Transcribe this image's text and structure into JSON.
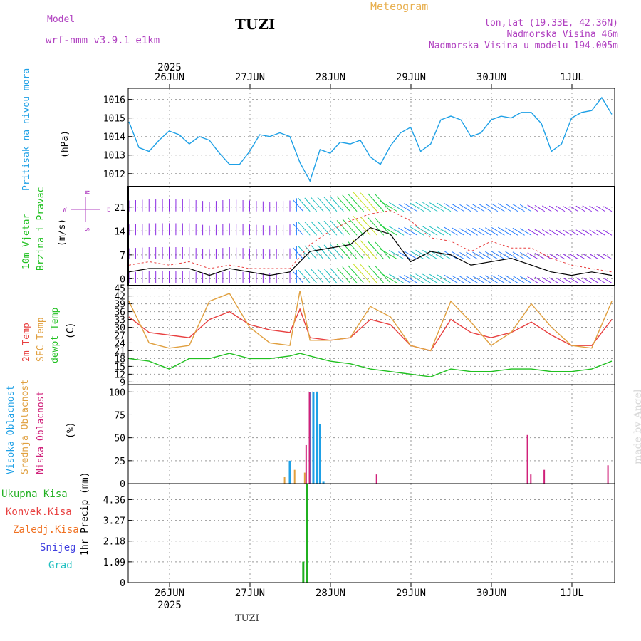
{
  "header": {
    "model_label": "Model",
    "model_name": "wrf-nmm_v3.9.1 e1km",
    "station": "TUZI",
    "meteogram_title": "Meteogram",
    "coords": "lon,lat (19.33E, 42.36N)",
    "elevation": "Nadmorska Visina 46m",
    "model_elevation": "Nadmorska Visina u modelu 194.005m"
  },
  "footer": {
    "station": "TUZI",
    "watermark": "made by Angel"
  },
  "time_axis": {
    "year": "2025",
    "days": [
      "26JUN",
      "27JUN",
      "28JUN",
      "29JUN",
      "30JUN",
      "1JUL"
    ]
  },
  "panel_labels": {
    "pressure": {
      "name": "Pritisak na nivou mora",
      "unit": "(hPa)"
    },
    "wind": {
      "name1": "10m Vjetar",
      "name2": "Brzina i Pravac",
      "unit": "(m/s)",
      "compass_n": "N",
      "compass_e": "E",
      "compass_w": "W",
      "compass_s": "S"
    },
    "temp": {
      "t2m": "2m Temp",
      "sfc": "SFC Temp",
      "dew": "dewpt Temp",
      "unit": "(C)"
    },
    "cloud": {
      "high": "Visoka Oblacnost",
      "mid": "Srednja Oblacnost",
      "low": "Niska Oblacnost",
      "unit": "(%)"
    },
    "precip": {
      "unit": "1hr Precip (mm)",
      "legend": [
        "Ukupna Kisa",
        "Konvek.Kisa",
        "Zaledj.Kisa",
        "Snijeg",
        "Grad"
      ]
    }
  },
  "colors": {
    "pressure": "#1ea0e6",
    "t2m": "#e84040",
    "sfc": "#e0a040",
    "dew": "#20c020",
    "high": "#1ea0e6",
    "mid": "#e0a040",
    "low": "#d0207a",
    "total_rain": "#20b020",
    "conv_rain": "#e84040",
    "frz_rain": "#f07020",
    "snow": "#4040e0",
    "hail": "#20c0c0",
    "wind_line": "#000000",
    "gust": "#e84040"
  },
  "chart_data": [
    {
      "type": "line",
      "title": "Pritisak na nivou mora",
      "ylabel": "(hPa)",
      "ylim": [
        1011.3,
        1016.6
      ],
      "yticks": [
        1012,
        1013,
        1014,
        1015,
        1016
      ],
      "x_range": [
        0,
        144
      ],
      "series": [
        {
          "name": "Pritisak na nivou mora",
          "x": [
            0,
            3,
            6,
            9,
            12,
            15,
            18,
            21,
            24,
            27,
            30,
            33,
            36,
            39,
            42,
            45,
            48,
            51,
            54,
            57,
            60,
            63,
            66,
            69,
            72,
            75,
            78,
            81,
            84,
            87,
            90,
            93,
            96,
            99,
            102,
            105,
            108,
            111,
            114,
            117,
            120,
            123,
            126,
            129,
            132,
            135,
            138,
            141,
            144
          ],
          "values": [
            1014.8,
            1013.4,
            1013.2,
            1013.8,
            1014.3,
            1014.1,
            1013.6,
            1014.0,
            1013.8,
            1013.1,
            1012.5,
            1012.5,
            1013.2,
            1014.1,
            1014.0,
            1014.2,
            1014.0,
            1012.6,
            1011.6,
            1013.3,
            1013.1,
            1013.7,
            1013.6,
            1013.8,
            1012.9,
            1012.5,
            1013.5,
            1014.2,
            1014.5,
            1013.2,
            1013.6,
            1014.9,
            1015.1,
            1014.9,
            1014.0,
            1014.2,
            1014.9,
            1015.1,
            1015.0,
            1015.3,
            1015.3,
            1014.7,
            1013.2,
            1013.6,
            1015.0,
            1015.3,
            1015.4,
            1016.1,
            1015.2
          ]
        }
      ]
    },
    {
      "type": "line",
      "title": "10m Vjetar Brzina i Pravac",
      "ylabel": "(m/s)",
      "ylim": [
        -2,
        27
      ],
      "yticks": [
        0,
        7,
        14,
        21
      ],
      "x_range": [
        0,
        144
      ],
      "series": [
        {
          "name": "Brzina",
          "x": [
            0,
            6,
            12,
            18,
            24,
            30,
            36,
            42,
            48,
            54,
            60,
            66,
            72,
            78,
            84,
            90,
            96,
            102,
            108,
            114,
            120,
            126,
            132,
            138,
            144
          ],
          "values": [
            2,
            3,
            3,
            3,
            1,
            3,
            2,
            1,
            2,
            8,
            9,
            10,
            15,
            13,
            5,
            8,
            7,
            4,
            5,
            6,
            4,
            2,
            1,
            2,
            1
          ]
        },
        {
          "name": "Udar",
          "x": [
            0,
            6,
            12,
            18,
            24,
            30,
            36,
            42,
            48,
            54,
            60,
            66,
            72,
            78,
            84,
            90,
            96,
            102,
            108,
            114,
            120,
            126,
            132,
            138,
            144
          ],
          "values": [
            4,
            5,
            4,
            5,
            3,
            4,
            3,
            3,
            3,
            10,
            14,
            17,
            19,
            20,
            17,
            12,
            11,
            8,
            11,
            9,
            9,
            6,
            4,
            3,
            2
          ]
        }
      ]
    },
    {
      "type": "line",
      "title": "Temp",
      "ylabel": "(C)",
      "ylim": [
        8,
        46
      ],
      "yticks": [
        9,
        12,
        15,
        18,
        21,
        24,
        27,
        30,
        33,
        36,
        39,
        42,
        45
      ],
      "x_range": [
        0,
        144
      ],
      "series": [
        {
          "name": "2m Temp",
          "x": [
            0,
            6,
            12,
            18,
            24,
            30,
            36,
            42,
            48,
            51,
            54,
            60,
            66,
            72,
            78,
            84,
            90,
            96,
            102,
            108,
            114,
            120,
            126,
            132,
            138,
            144
          ],
          "values": [
            34,
            28,
            27,
            26,
            33,
            36,
            31,
            29,
            28,
            37,
            26,
            25,
            26,
            33,
            31,
            23,
            21,
            33,
            28,
            26,
            28,
            32,
            27,
            23,
            23,
            33
          ]
        },
        {
          "name": "SFC Temp",
          "x": [
            0,
            6,
            12,
            18,
            24,
            30,
            36,
            42,
            48,
            51,
            54,
            60,
            66,
            72,
            78,
            84,
            90,
            96,
            102,
            108,
            114,
            120,
            126,
            132,
            138,
            144
          ],
          "values": [
            40,
            24,
            22,
            23,
            40,
            43,
            30,
            24,
            23,
            44,
            25,
            25,
            26,
            38,
            34,
            23,
            21,
            40,
            32,
            23,
            28,
            39,
            30,
            23,
            22,
            40
          ]
        },
        {
          "name": "dewpt Temp",
          "x": [
            0,
            6,
            12,
            18,
            24,
            30,
            36,
            42,
            48,
            51,
            54,
            60,
            66,
            72,
            78,
            84,
            90,
            96,
            102,
            108,
            114,
            120,
            126,
            132,
            138,
            144
          ],
          "values": [
            18,
            17,
            14,
            18,
            18,
            20,
            18,
            18,
            19,
            20,
            19,
            17,
            16,
            14,
            13,
            12,
            11,
            14,
            13,
            13,
            14,
            14,
            13,
            13,
            14,
            17
          ]
        }
      ]
    },
    {
      "type": "bar",
      "title": "Oblacnost",
      "ylabel": "(%)",
      "ylim": [
        0,
        108
      ],
      "yticks": [
        0,
        25,
        50,
        75,
        100
      ],
      "x_range": [
        0,
        144
      ],
      "series": [
        {
          "name": "Visoka Oblacnost",
          "x": [
            48,
            54,
            55,
            56,
            57,
            58
          ],
          "values": [
            25,
            100,
            100,
            100,
            65,
            2
          ]
        },
        {
          "name": "Srednja Oblacnost",
          "x": [
            46,
            49,
            52
          ],
          "values": [
            7,
            15,
            12
          ]
        },
        {
          "name": "Niska Oblacnost",
          "x": [
            52,
            53,
            73,
            118,
            119,
            123,
            142
          ],
          "values": [
            42,
            100,
            10,
            53,
            10,
            15,
            20
          ]
        }
      ]
    },
    {
      "type": "bar",
      "title": "1hr Precip",
      "ylabel": "1hr Precip (mm)",
      "ylim": [
        0,
        5.2
      ],
      "yticks": [
        0,
        1.09,
        2.18,
        3.27,
        4.36
      ],
      "x_range": [
        0,
        144
      ],
      "series": [
        {
          "name": "Ukupna Kisa",
          "x": [
            52,
            53
          ],
          "values": [
            1.1,
            5.2
          ]
        }
      ]
    }
  ]
}
